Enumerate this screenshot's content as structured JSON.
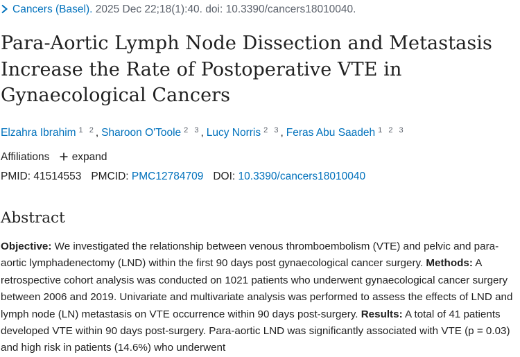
{
  "citation": {
    "journal": "Cancers (Basel).",
    "details": " 2025 Dec 22;18(1):40. doi: 10.3390/cancers18010040."
  },
  "title": "Para-Aortic Lymph Node Dissection and Metastasis Increase the Rate of Postoperative VTE in Gynaecological Cancers",
  "authors": [
    {
      "name": "Elzahra Ibrahim",
      "affiliations": "1 2"
    },
    {
      "name": "Sharoon O'Toole",
      "affiliations": "2 3"
    },
    {
      "name": "Lucy Norris",
      "affiliations": "2 3"
    },
    {
      "name": "Feras Abu Saadeh",
      "affiliations": "1 2 3"
    }
  ],
  "author_separator": ",",
  "affiliations": {
    "label": "Affiliations",
    "expand_label": "expand"
  },
  "identifiers": {
    "pmid_label": "PMID:",
    "pmid": "41514553",
    "pmcid_label": "PMCID:",
    "pmcid": "PMC12784709",
    "doi_label": "DOI:",
    "doi": "10.3390/cancers18010040"
  },
  "abstract": {
    "heading": "Abstract",
    "objective_label": "Objective:",
    "objective_text": " We investigated the relationship between venous thromboembolism (VTE) and pelvic and para-aortic lymphadenectomy (LND) within the first 90 days post gynaecological cancer surgery. ",
    "methods_label": "Methods:",
    "methods_text": " A retrospective cohort analysis was conducted on 1021 patients who underwent gynaecological cancer surgery between 2006 and 2019. Univariate and multivariate analysis was performed to assess the effects of LND and lymph node (LN) metastasis on VTE occurrence within 90 days post-surgery. ",
    "results_label": "Results:",
    "results_text": " A total of 41 patients developed VTE within 90 days post-surgery. Para-aortic LND was significantly associated with VTE (p = 0.03) and high risk in patients (14.6%) who underwent"
  },
  "colors": {
    "link": "#0071bc",
    "text": "#212121",
    "muted": "#5b616b"
  },
  "icons": {
    "breadcrumb": "chevron-right-icon",
    "expand": "plus-icon"
  }
}
